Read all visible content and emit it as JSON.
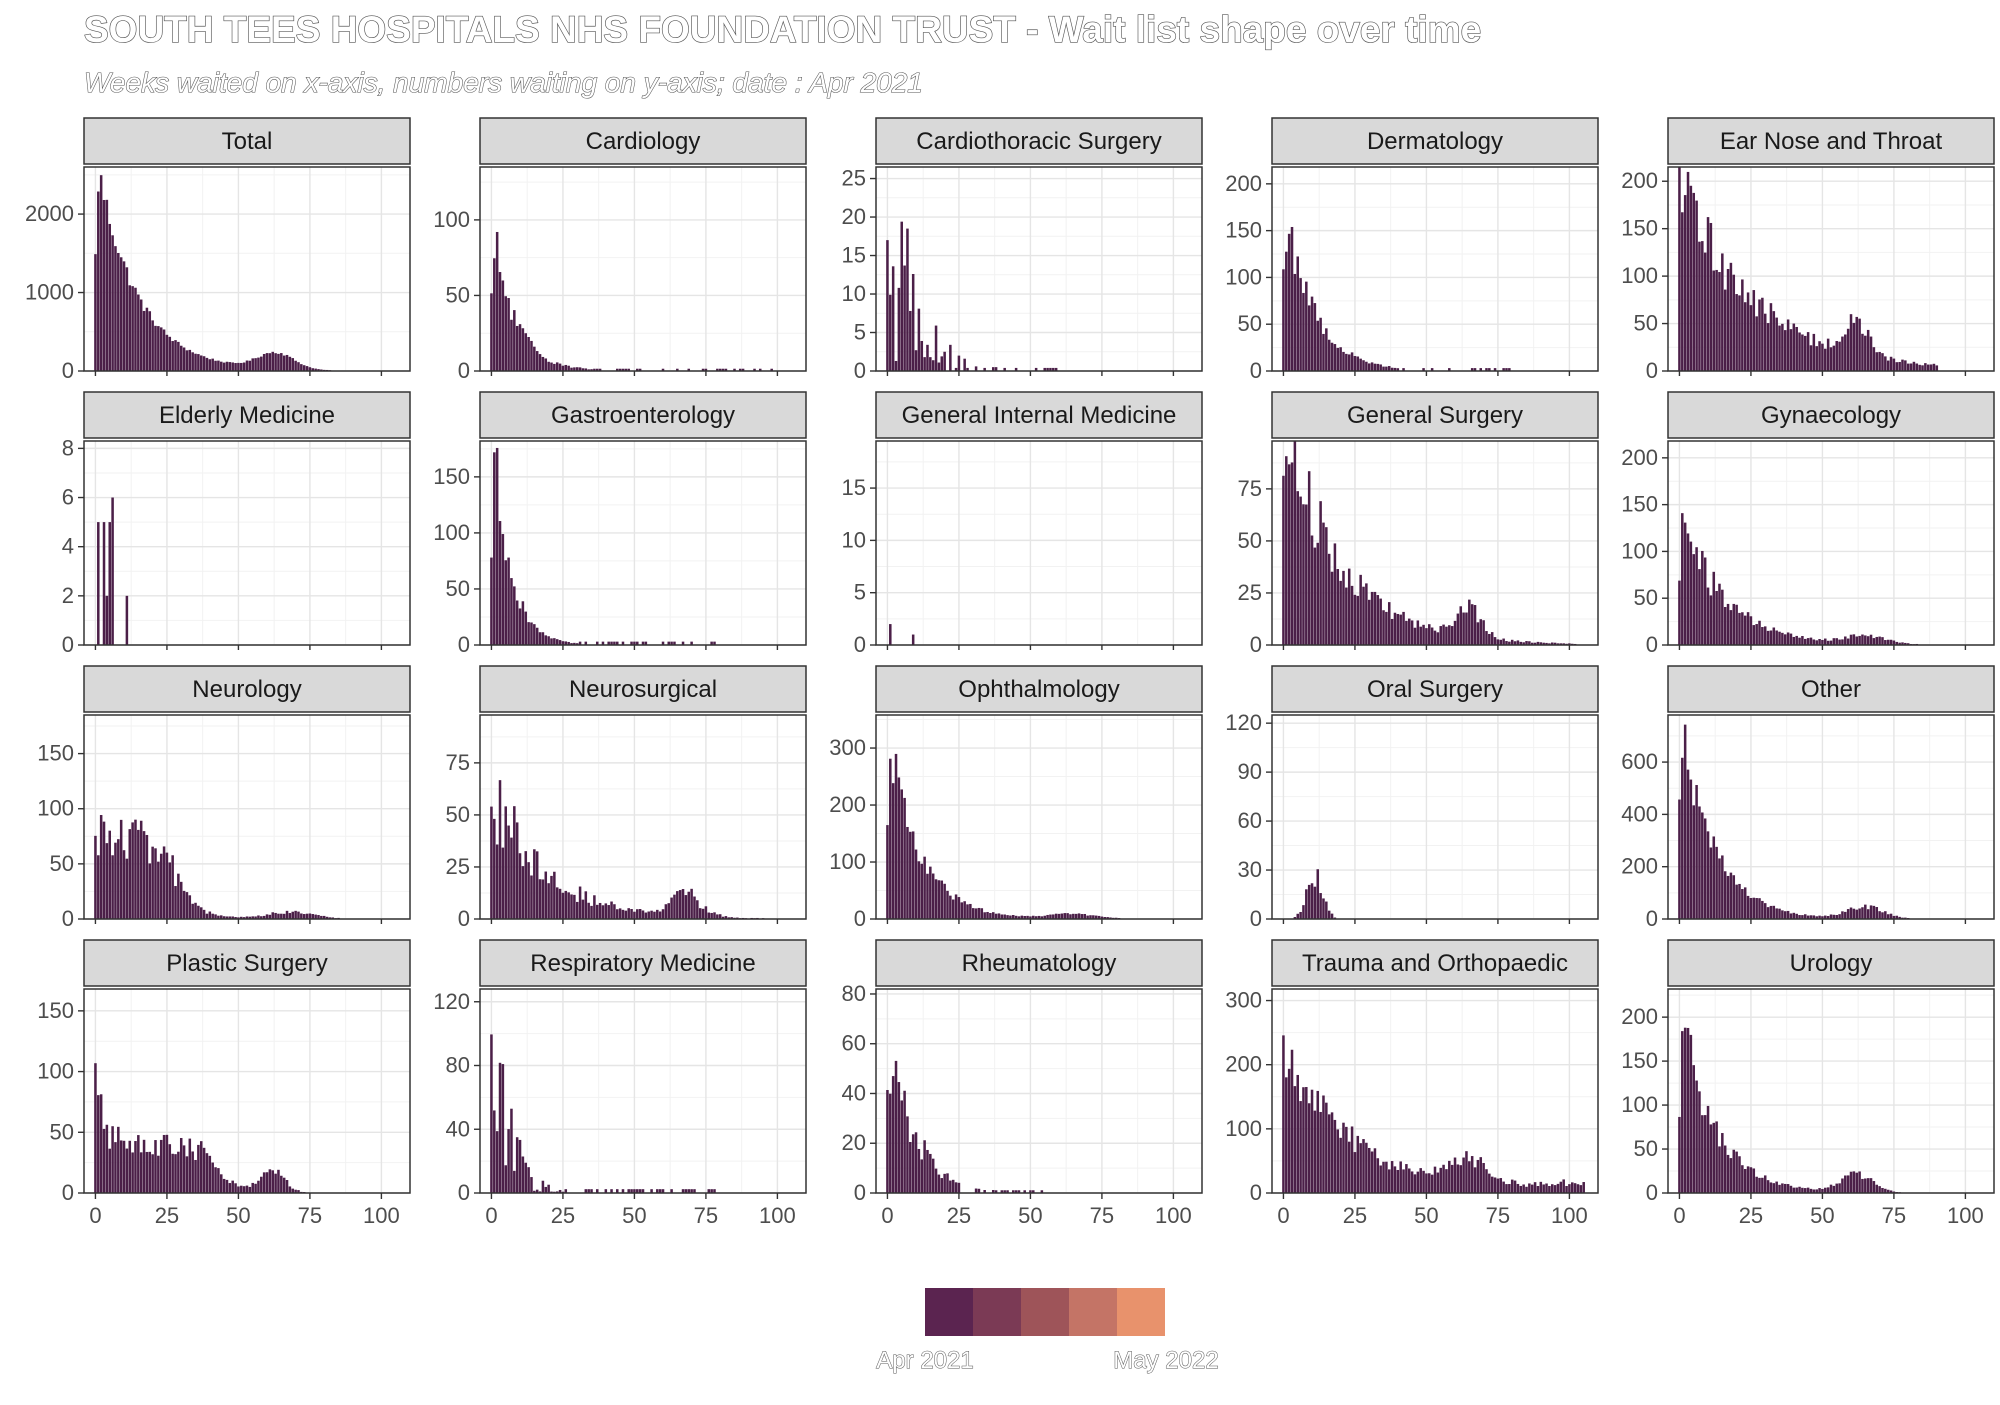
{
  "title": "SOUTH TEES HOSPITALS NHS FOUNDATION TRUST - Wait list shape over time",
  "subtitle": "Weeks waited on x-axis, numbers waiting on y-axis; date : Apr 2021",
  "legend": {
    "start_label": "Apr 2021",
    "end_label": "May 2022",
    "colors": [
      "#5b2450",
      "#7b3a55",
      "#9e5459",
      "#c47466",
      "#e8926c"
    ]
  },
  "bar_color": "#4b1f48",
  "chart_data": [
    {
      "type": "bar",
      "title": "Total",
      "x_ticks": [
        0,
        25,
        50,
        75,
        100
      ],
      "y_ticks": [
        0,
        1000,
        2000
      ],
      "xlim": [
        -4,
        110
      ],
      "ylim": [
        0,
        2600
      ],
      "profile": "decay",
      "peak": 2400,
      "decay": 14,
      "second_bump": {
        "center": 63,
        "height": 210,
        "width": 9
      },
      "max_week": 105,
      "noise": 0.08
    },
    {
      "type": "bar",
      "title": "Cardiology",
      "x_ticks": [
        0,
        25,
        50,
        75,
        100
      ],
      "y_ticks": [
        0,
        50,
        100
      ],
      "xlim": [
        -4,
        110
      ],
      "ylim": [
        0,
        135
      ],
      "profile": "decay",
      "peak": 75,
      "decay": 8,
      "max_week": 98,
      "noise": 0.25,
      "sparse_after": 35
    },
    {
      "type": "bar",
      "title": "Cardiothoracic Surgery",
      "x_ticks": [
        0,
        25,
        50,
        75,
        100
      ],
      "y_ticks": [
        0,
        5,
        10,
        15,
        20,
        25
      ],
      "xlim": [
        -4,
        110
      ],
      "ylim": [
        0,
        26.5
      ],
      "profile": "spiky",
      "peak": 19,
      "decay": 9,
      "max_week": 60,
      "noise": 0.7,
      "sparse_after": 20
    },
    {
      "type": "bar",
      "title": "Dermatology",
      "x_ticks": [
        0,
        25,
        50,
        75,
        100
      ],
      "y_ticks": [
        0,
        50,
        100,
        150,
        200
      ],
      "xlim": [
        -4,
        110
      ],
      "ylim": [
        0,
        218
      ],
      "profile": "decay",
      "peak": 155,
      "decay": 10,
      "max_week": 80,
      "noise": 0.2,
      "sparse_after": 40
    },
    {
      "type": "bar",
      "title": "Ear Nose and Throat",
      "x_ticks": [
        0,
        25,
        50,
        75,
        100
      ],
      "y_ticks": [
        0,
        50,
        100,
        150,
        200
      ],
      "xlim": [
        -4,
        110
      ],
      "ylim": [
        0,
        215
      ],
      "profile": "slowdecay",
      "peak": 180,
      "decay": 26,
      "second_bump": {
        "center": 62,
        "height": 33,
        "width": 6
      },
      "max_week": 90,
      "noise": 0.22
    },
    {
      "type": "bar",
      "title": "Elderly Medicine",
      "x_ticks": [
        0,
        25,
        50,
        75,
        100
      ],
      "y_ticks": [
        0,
        2,
        4,
        6,
        8
      ],
      "xlim": [
        -4,
        110
      ],
      "ylim": [
        0,
        8.3
      ],
      "profile": "explicit",
      "points": [
        [
          1,
          5
        ],
        [
          3,
          5
        ],
        [
          4,
          2
        ],
        [
          5,
          5
        ],
        [
          6,
          6
        ],
        [
          11,
          2
        ]
      ]
    },
    {
      "type": "bar",
      "title": "Gastroenterology",
      "x_ticks": [
        0,
        25,
        50,
        75,
        100
      ],
      "y_ticks": [
        0,
        50,
        100,
        150
      ],
      "xlim": [
        -4,
        110
      ],
      "ylim": [
        0,
        182
      ],
      "profile": "decay",
      "peak": 150,
      "decay": 6,
      "max_week": 80,
      "noise": 0.18,
      "sparse_after": 30
    },
    {
      "type": "bar",
      "title": "General Internal Medicine",
      "x_ticks": [
        0,
        25,
        50,
        75,
        100
      ],
      "y_ticks": [
        0,
        5,
        10,
        15
      ],
      "xlim": [
        -4,
        110
      ],
      "ylim": [
        0,
        19.5
      ],
      "profile": "explicit",
      "points": [
        [
          1,
          2
        ],
        [
          9,
          1
        ]
      ]
    },
    {
      "type": "bar",
      "title": "General Surgery",
      "x_ticks": [
        0,
        25,
        50,
        75,
        100
      ],
      "y_ticks": [
        0,
        25,
        50,
        75
      ],
      "xlim": [
        -4,
        110
      ],
      "ylim": [
        0,
        98
      ],
      "profile": "slowdecay",
      "peak": 92,
      "decay": 20,
      "second_bump": {
        "center": 65,
        "height": 14,
        "width": 6
      },
      "max_week": 102,
      "noise": 0.25
    },
    {
      "type": "bar",
      "title": "Gynaecology",
      "x_ticks": [
        0,
        25,
        50,
        75,
        100
      ],
      "y_ticks": [
        0,
        50,
        100,
        150,
        200
      ],
      "xlim": [
        -4,
        110
      ],
      "ylim": [
        0,
        218
      ],
      "profile": "decay",
      "peak": 125,
      "decay": 15,
      "second_bump": {
        "center": 65,
        "height": 8,
        "width": 10
      },
      "max_week": 102,
      "noise": 0.25
    },
    {
      "type": "bar",
      "title": "Neurology",
      "x_ticks": [
        0,
        25,
        50,
        75,
        100
      ],
      "y_ticks": [
        0,
        50,
        100,
        150
      ],
      "xlim": [
        -4,
        110
      ],
      "ylim": [
        0,
        185
      ],
      "profile": "plateau",
      "peak": 80,
      "plateau_end": 26,
      "decay": 6,
      "second_bump": {
        "center": 68,
        "height": 6,
        "width": 12
      },
      "max_week": 92,
      "noise": 0.3
    },
    {
      "type": "bar",
      "title": "Neurosurgical",
      "x_ticks": [
        0,
        25,
        50,
        75,
        100
      ],
      "y_ticks": [
        0,
        25,
        50,
        75
      ],
      "xlim": [
        -4,
        110
      ],
      "ylim": [
        0,
        98
      ],
      "profile": "slowdecay",
      "peak": 55,
      "decay": 18,
      "second_bump": {
        "center": 68,
        "height": 10,
        "width": 8
      },
      "max_week": 105,
      "noise": 0.35
    },
    {
      "type": "bar",
      "title": "Ophthalmology",
      "x_ticks": [
        0,
        25,
        50,
        75,
        100
      ],
      "y_ticks": [
        0,
        100,
        200,
        300
      ],
      "xlim": [
        -4,
        110
      ],
      "ylim": [
        0,
        358
      ],
      "profile": "decay",
      "peak": 270,
      "decay": 11,
      "second_bump": {
        "center": 65,
        "height": 8,
        "width": 12
      },
      "max_week": 105,
      "noise": 0.2
    },
    {
      "type": "bar",
      "title": "Oral Surgery",
      "x_ticks": [
        0,
        25,
        50,
        75,
        100
      ],
      "y_ticks": [
        0,
        30,
        60,
        90,
        120
      ],
      "xlim": [
        -4,
        110
      ],
      "ylim": [
        0,
        125
      ],
      "profile": "bump",
      "peak": 25,
      "center": 11,
      "width": 4,
      "max_week": 72,
      "noise": 0.3,
      "sparse_after": 20
    },
    {
      "type": "bar",
      "title": "Other",
      "x_ticks": [
        0,
        25,
        50,
        75,
        100
      ],
      "y_ticks": [
        0,
        200,
        400,
        600
      ],
      "xlim": [
        -4,
        110
      ],
      "ylim": [
        0,
        780
      ],
      "profile": "decay",
      "peak": 710,
      "decay": 11,
      "second_bump": {
        "center": 65,
        "height": 45,
        "width": 9
      },
      "max_week": 105,
      "noise": 0.2
    },
    {
      "type": "bar",
      "title": "Plastic Surgery",
      "x_ticks": [
        0,
        25,
        50,
        75,
        100
      ],
      "y_ticks": [
        0,
        50,
        100,
        150
      ],
      "xlim": [
        -4,
        110
      ],
      "ylim": [
        0,
        168
      ],
      "profile": "plateau",
      "peak": 45,
      "plateau_end": 40,
      "start_peak": 95,
      "decay": 6,
      "second_bump": {
        "center": 62,
        "height": 17,
        "width": 6
      },
      "max_week": 96,
      "noise": 0.25
    },
    {
      "type": "bar",
      "title": "Respiratory Medicine",
      "x_ticks": [
        0,
        25,
        50,
        75,
        100
      ],
      "y_ticks": [
        0,
        40,
        80,
        120
      ],
      "xlim": [
        -4,
        110
      ],
      "ylim": [
        0,
        128
      ],
      "profile": "spiky",
      "peak": 120,
      "decay": 5,
      "max_week": 78,
      "noise": 0.6,
      "sparse_after": 25
    },
    {
      "type": "bar",
      "title": "Rheumatology",
      "x_ticks": [
        0,
        25,
        50,
        75,
        100
      ],
      "y_ticks": [
        0,
        20,
        40,
        60,
        80
      ],
      "xlim": [
        -4,
        110
      ],
      "ylim": [
        0,
        82
      ],
      "profile": "decay",
      "peak": 56,
      "decay": 9,
      "max_week": 55,
      "noise": 0.3,
      "sparse_after": 25
    },
    {
      "type": "bar",
      "title": "Trauma and Orthopaedic",
      "x_ticks": [
        0,
        25,
        50,
        75,
        100
      ],
      "y_ticks": [
        0,
        100,
        200,
        300
      ],
      "xlim": [
        -4,
        110
      ],
      "ylim": [
        0,
        318
      ],
      "profile": "slowdecay",
      "peak": 200,
      "decay": 24,
      "second_bump": {
        "center": 65,
        "height": 38,
        "width": 10
      },
      "max_week": 105,
      "noise": 0.25,
      "floor": 18
    },
    {
      "type": "bar",
      "title": "Urology",
      "x_ticks": [
        0,
        25,
        50,
        75,
        100
      ],
      "y_ticks": [
        0,
        50,
        100,
        150,
        200
      ],
      "xlim": [
        -4,
        110
      ],
      "ylim": [
        0,
        232
      ],
      "profile": "decay",
      "peak": 178,
      "decay": 12,
      "second_bump": {
        "center": 62,
        "height": 20,
        "width": 8
      },
      "max_week": 102,
      "noise": 0.2
    }
  ]
}
